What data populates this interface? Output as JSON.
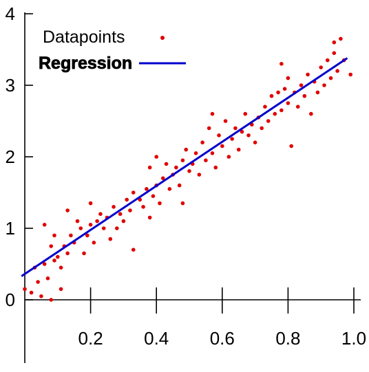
{
  "chart_data": {
    "type": "scatter",
    "title": "",
    "xlabel": "",
    "ylabel": "",
    "xlim": [
      0,
      1.0
    ],
    "ylim": [
      0,
      4
    ],
    "x_ticks": [
      0.2,
      0.4,
      0.6,
      0.8,
      1.0
    ],
    "x_tick_labels": [
      "0.2",
      "0.4",
      "0.6",
      "0.8",
      "1.0"
    ],
    "y_ticks": [
      0,
      1,
      2,
      3,
      4
    ],
    "y_tick_labels": [
      "0",
      "1",
      "2",
      "3",
      "4"
    ],
    "grid": false,
    "legend_position": "top-left",
    "series": [
      {
        "name": "Datapoints",
        "kind": "scatter",
        "color": "#e00000",
        "points": [
          [
            0.0,
            0.15
          ],
          [
            0.02,
            0.1
          ],
          [
            0.03,
            0.45
          ],
          [
            0.04,
            0.25
          ],
          [
            0.05,
            0.05
          ],
          [
            0.06,
            0.5
          ],
          [
            0.06,
            1.05
          ],
          [
            0.07,
            0.3
          ],
          [
            0.08,
            0.0
          ],
          [
            0.08,
            0.75
          ],
          [
            0.09,
            0.55
          ],
          [
            0.09,
            0.9
          ],
          [
            0.1,
            0.6
          ],
          [
            0.11,
            0.45
          ],
          [
            0.11,
            0.15
          ],
          [
            0.12,
            0.75
          ],
          [
            0.13,
            0.65
          ],
          [
            0.13,
            1.25
          ],
          [
            0.14,
            0.9
          ],
          [
            0.15,
            0.8
          ],
          [
            0.16,
            1.1
          ],
          [
            0.17,
            1.0
          ],
          [
            0.18,
            0.65
          ],
          [
            0.19,
            0.9
          ],
          [
            0.2,
            1.05
          ],
          [
            0.2,
            1.35
          ],
          [
            0.21,
            0.8
          ],
          [
            0.22,
            1.1
          ],
          [
            0.23,
            1.2
          ],
          [
            0.24,
            1.0
          ],
          [
            0.25,
            1.15
          ],
          [
            0.26,
            0.85
          ],
          [
            0.27,
            1.3
          ],
          [
            0.28,
            1.0
          ],
          [
            0.29,
            1.2
          ],
          [
            0.3,
            1.1
          ],
          [
            0.31,
            1.4
          ],
          [
            0.32,
            1.25
          ],
          [
            0.33,
            1.5
          ],
          [
            0.33,
            0.7
          ],
          [
            0.35,
            1.4
          ],
          [
            0.36,
            1.3
          ],
          [
            0.37,
            1.55
          ],
          [
            0.38,
            1.85
          ],
          [
            0.38,
            1.15
          ],
          [
            0.39,
            1.45
          ],
          [
            0.4,
            1.6
          ],
          [
            0.4,
            2.0
          ],
          [
            0.41,
            1.35
          ],
          [
            0.42,
            1.7
          ],
          [
            0.43,
            1.9
          ],
          [
            0.44,
            1.55
          ],
          [
            0.45,
            1.75
          ],
          [
            0.46,
            1.85
          ],
          [
            0.47,
            1.6
          ],
          [
            0.48,
            1.95
          ],
          [
            0.48,
            1.35
          ],
          [
            0.49,
            2.1
          ],
          [
            0.5,
            1.8
          ],
          [
            0.51,
            1.9
          ],
          [
            0.52,
            2.05
          ],
          [
            0.53,
            1.75
          ],
          [
            0.54,
            2.2
          ],
          [
            0.55,
            1.95
          ],
          [
            0.56,
            2.4
          ],
          [
            0.57,
            2.05
          ],
          [
            0.57,
            2.6
          ],
          [
            0.58,
            1.85
          ],
          [
            0.59,
            2.3
          ],
          [
            0.6,
            2.15
          ],
          [
            0.61,
            2.5
          ],
          [
            0.62,
            2.0
          ],
          [
            0.63,
            2.25
          ],
          [
            0.64,
            2.4
          ],
          [
            0.65,
            2.1
          ],
          [
            0.66,
            2.35
          ],
          [
            0.67,
            2.6
          ],
          [
            0.68,
            2.3
          ],
          [
            0.69,
            2.45
          ],
          [
            0.7,
            2.2
          ],
          [
            0.71,
            2.55
          ],
          [
            0.72,
            2.4
          ],
          [
            0.73,
            2.7
          ],
          [
            0.74,
            2.5
          ],
          [
            0.75,
            2.85
          ],
          [
            0.76,
            2.6
          ],
          [
            0.77,
            2.9
          ],
          [
            0.78,
            2.65
          ],
          [
            0.78,
            3.3
          ],
          [
            0.79,
            2.95
          ],
          [
            0.8,
            2.75
          ],
          [
            0.8,
            3.1
          ],
          [
            0.81,
            2.15
          ],
          [
            0.82,
            2.9
          ],
          [
            0.83,
            2.7
          ],
          [
            0.84,
            3.0
          ],
          [
            0.85,
            2.85
          ],
          [
            0.86,
            3.15
          ],
          [
            0.87,
            2.6
          ],
          [
            0.88,
            3.05
          ],
          [
            0.89,
            2.9
          ],
          [
            0.9,
            3.25
          ],
          [
            0.91,
            3.0
          ],
          [
            0.92,
            3.35
          ],
          [
            0.93,
            3.1
          ],
          [
            0.94,
            3.45
          ],
          [
            0.94,
            3.6
          ],
          [
            0.95,
            3.2
          ],
          [
            0.96,
            3.65
          ],
          [
            0.97,
            3.35
          ],
          [
            0.99,
            3.15
          ]
        ]
      },
      {
        "name": "Regression",
        "kind": "line",
        "color": "#0000cc",
        "x": [
          -0.01,
          0.98
        ],
        "y": [
          0.33,
          3.38
        ]
      }
    ]
  }
}
